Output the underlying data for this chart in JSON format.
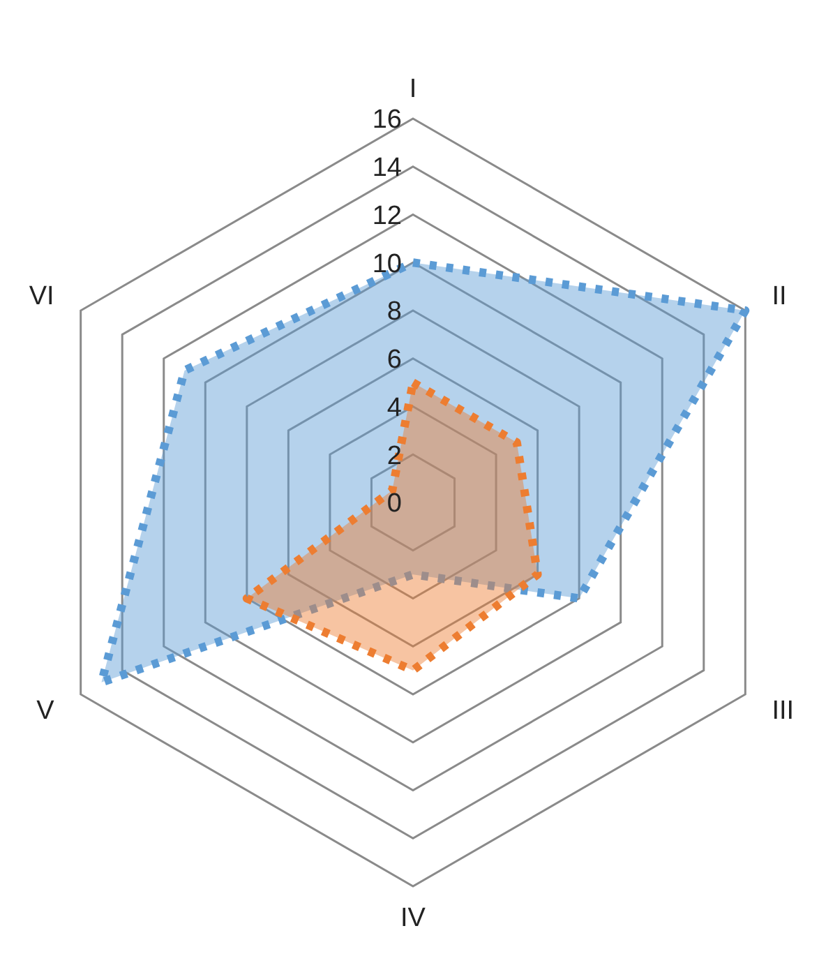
{
  "chart_data": {
    "type": "radar",
    "categories": [
      "I",
      "II",
      "III",
      "IV",
      "V",
      "VI"
    ],
    "ylim": [
      0,
      16
    ],
    "yticks": [
      0,
      2,
      4,
      6,
      8,
      10,
      12,
      14,
      16
    ],
    "grid": true,
    "line_style": "dotted",
    "marker": "none",
    "series": [
      {
        "color": "#5b9bd5",
        "values": [
          10,
          16,
          8,
          3,
          15,
          11
        ]
      },
      {
        "color": "#ed7d31",
        "values": [
          5,
          5,
          6,
          7,
          8,
          1
        ]
      }
    ]
  }
}
